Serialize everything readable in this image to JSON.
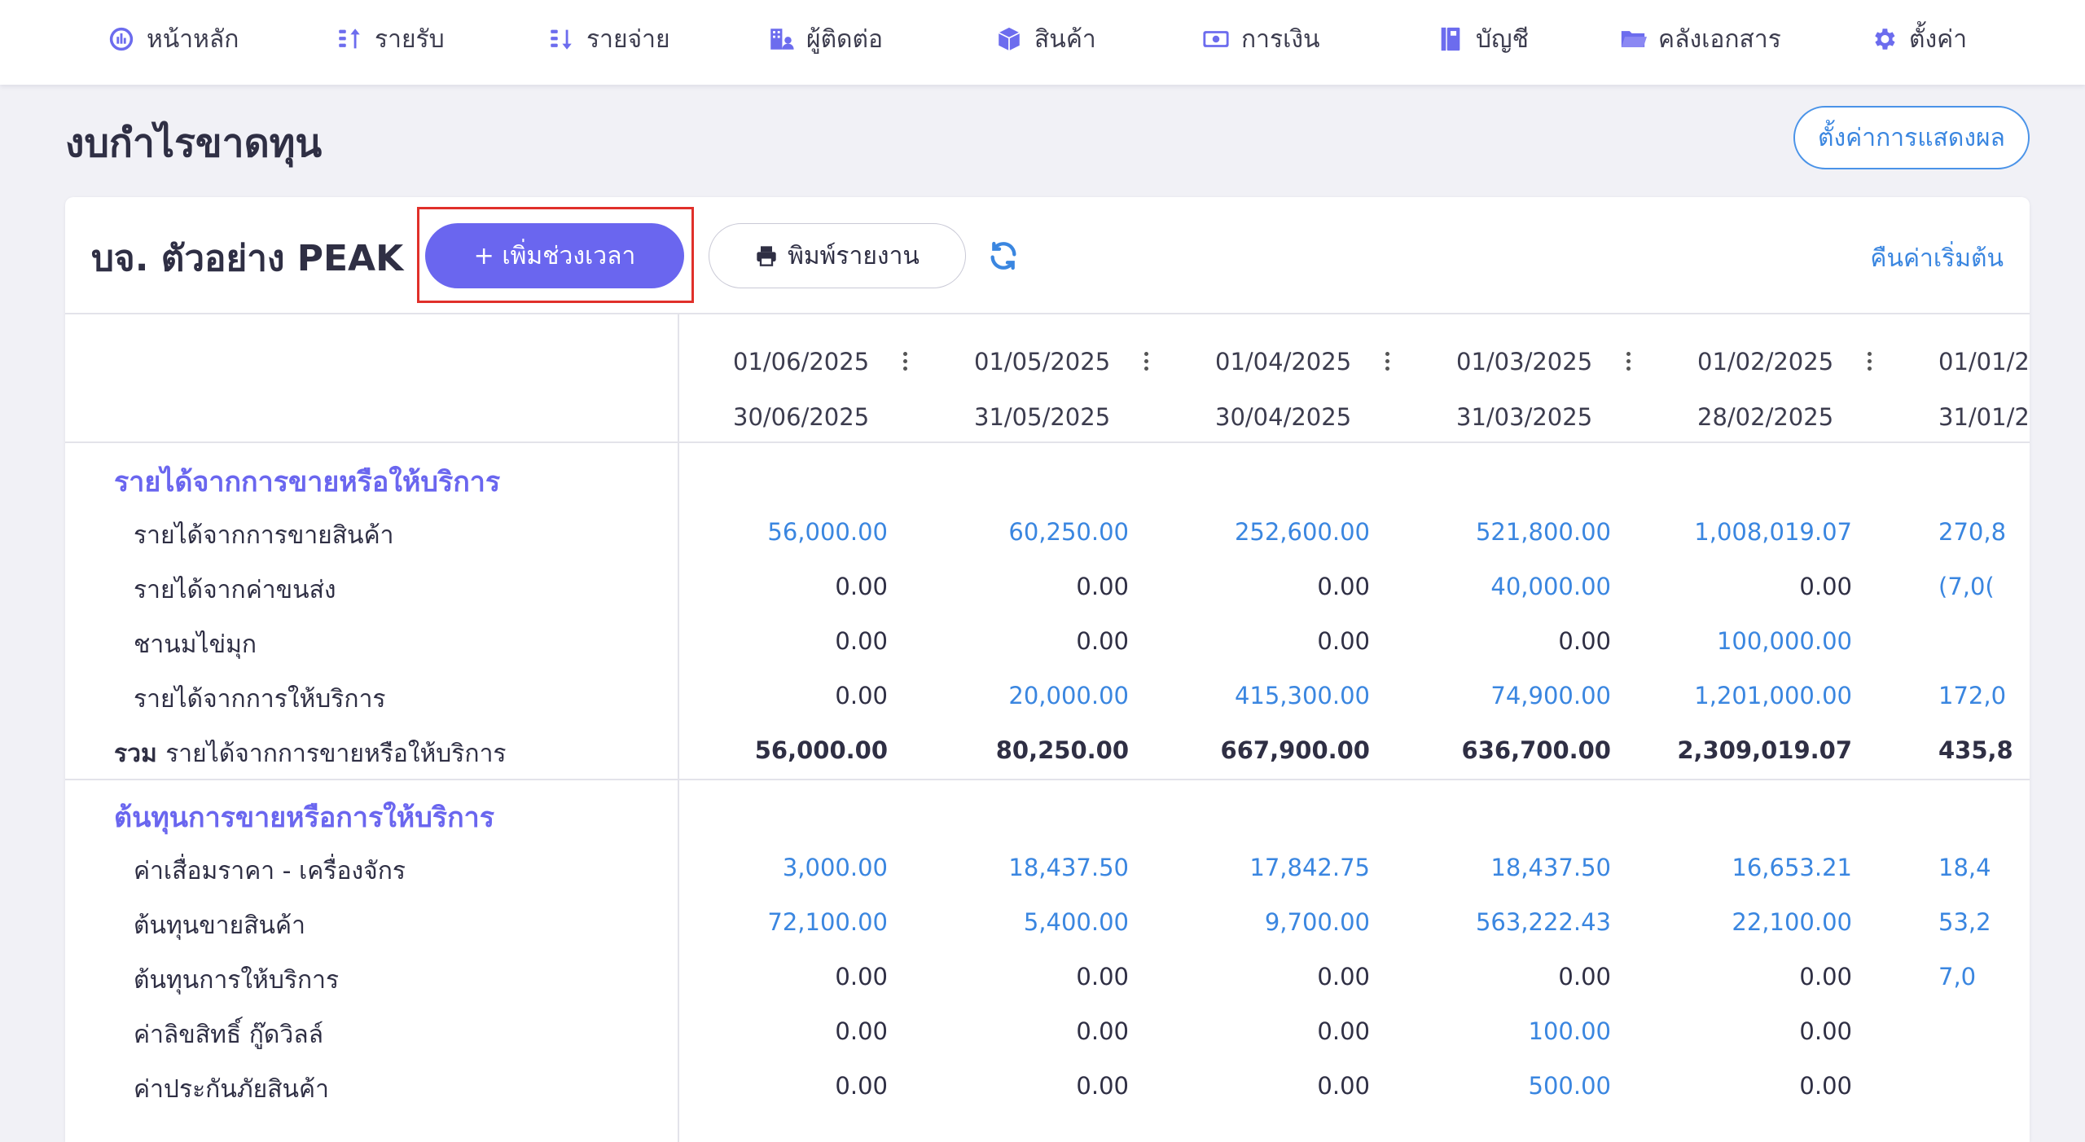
{
  "nav": [
    {
      "label": "หน้าหลัก",
      "icon": "dashboard-icon"
    },
    {
      "label": "รายรับ",
      "icon": "income-icon"
    },
    {
      "label": "รายจ่าย",
      "icon": "expense-icon"
    },
    {
      "label": "ผู้ติดต่อ",
      "icon": "contacts-icon"
    },
    {
      "label": "สินค้า",
      "icon": "box-icon"
    },
    {
      "label": "การเงิน",
      "icon": "money-icon"
    },
    {
      "label": "บัญชี",
      "icon": "ledger-icon"
    },
    {
      "label": "คลังเอกสาร",
      "icon": "folder-icon"
    },
    {
      "label": "ตั้งค่า",
      "icon": "gear-icon"
    }
  ],
  "page": {
    "title": "งบกำไรขาดทุน",
    "display_settings": "ตั้งค่าการแสดงผล"
  },
  "toolbar": {
    "company": "บจ. ตัวอย่าง PEAK",
    "add_period": "+ เพิ่มช่วงเวลา",
    "print": "พิมพ์รายงาน",
    "reset": "คืนค่าเริ่มต้น"
  },
  "columns": [
    {
      "start": "01/06/2025",
      "end": "30/06/2025"
    },
    {
      "start": "01/05/2025",
      "end": "31/05/2025"
    },
    {
      "start": "01/04/2025",
      "end": "30/04/2025"
    },
    {
      "start": "01/03/2025",
      "end": "31/03/2025"
    },
    {
      "start": "01/02/2025",
      "end": "28/02/2025"
    },
    {
      "start": "01/01/2",
      "end": "31/01/2"
    }
  ],
  "sections": [
    {
      "title": "รายได้จากการขายหรือให้บริการ",
      "rows": [
        {
          "label": "รายได้จากการขายสินค้า",
          "values": [
            "56,000.00",
            "60,250.00",
            "252,600.00",
            "521,800.00",
            "1,008,019.07",
            "270,8"
          ]
        },
        {
          "label": "รายได้จากค่าขนส่ง",
          "values": [
            "0.00",
            "0.00",
            "0.00",
            "40,000.00",
            "0.00",
            "(7,0("
          ]
        },
        {
          "label": "ชานมไข่มุก",
          "values": [
            "0.00",
            "0.00",
            "0.00",
            "0.00",
            "100,000.00",
            ""
          ]
        },
        {
          "label": "รายได้จากการให้บริการ",
          "values": [
            "0.00",
            "20,000.00",
            "415,300.00",
            "74,900.00",
            "1,201,000.00",
            "172,0"
          ]
        }
      ],
      "total_prefix": "รวม",
      "total_label": "รายได้จากการขายหรือให้บริการ",
      "totals": [
        "56,000.00",
        "80,250.00",
        "667,900.00",
        "636,700.00",
        "2,309,019.07",
        "435,8"
      ]
    },
    {
      "title": "ต้นทุนการขายหรือการให้บริการ",
      "rows": [
        {
          "label": "ค่าเสื่อมราคา - เครื่องจักร",
          "values": [
            "3,000.00",
            "18,437.50",
            "17,842.75",
            "18,437.50",
            "16,653.21",
            "18,4"
          ]
        },
        {
          "label": "ต้นทุนขายสินค้า",
          "values": [
            "72,100.00",
            "5,400.00",
            "9,700.00",
            "563,222.43",
            "22,100.00",
            "53,2"
          ]
        },
        {
          "label": "ต้นทุนการให้บริการ",
          "values": [
            "0.00",
            "0.00",
            "0.00",
            "0.00",
            "0.00",
            "7,0"
          ]
        },
        {
          "label": "ค่าลิขสิทธิ์ กู๊ดวิลล์",
          "values": [
            "0.00",
            "0.00",
            "0.00",
            "100.00",
            "0.00",
            ""
          ]
        },
        {
          "label": "ค่าประกันภัยสินค้า",
          "values": [
            "0.00",
            "0.00",
            "0.00",
            "500.00",
            "0.00",
            ""
          ]
        }
      ]
    }
  ],
  "colors": {
    "accent": "#6a66ef",
    "link": "#3a86e0",
    "highlight": "#e0302a"
  }
}
